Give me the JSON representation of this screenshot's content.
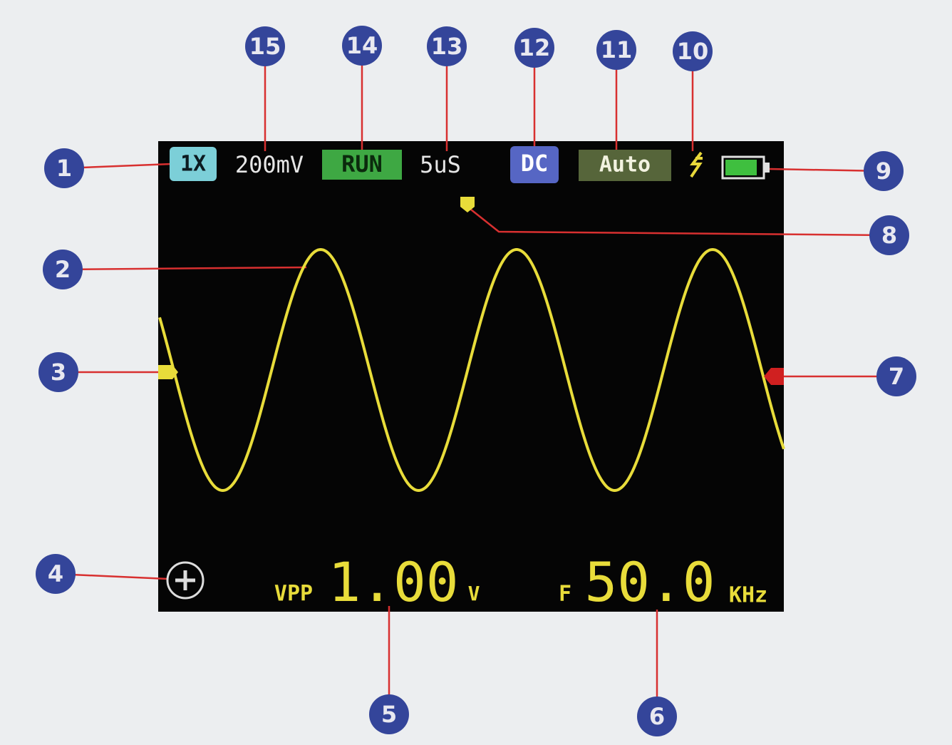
{
  "status_bar": {
    "probe": "1X",
    "volts_per_div": "200mV",
    "run_state": "RUN",
    "time_per_div": "5uS",
    "coupling": "DC",
    "trigger_mode": "Auto"
  },
  "measurements": {
    "vpp_label": "VPP",
    "vpp_value": "1.00",
    "vpp_unit": "V",
    "freq_label": "F",
    "freq_value": "50.0",
    "freq_unit": "KHz"
  },
  "callouts": [
    1,
    2,
    3,
    4,
    5,
    6,
    7,
    8,
    9,
    10,
    11,
    12,
    13,
    14,
    15
  ]
}
